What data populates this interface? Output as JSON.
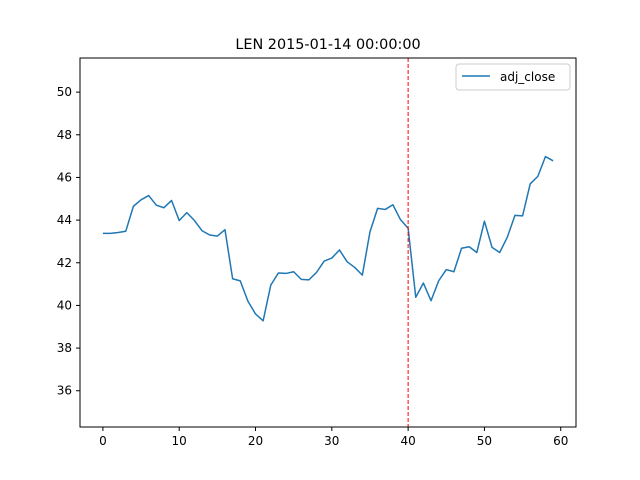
{
  "chart_data": {
    "type": "line",
    "title": "LEN 2015-01-14 00:00:00",
    "xlabel": "",
    "ylabel": "",
    "xlim": [
      -3,
      62
    ],
    "ylim": [
      34.3,
      51.6
    ],
    "xticks": [
      0,
      10,
      20,
      30,
      40,
      50,
      60
    ],
    "yticks": [
      36,
      38,
      40,
      42,
      44,
      46,
      48,
      50
    ],
    "grid": false,
    "legend_position": "top-right",
    "series": [
      {
        "name": "adj_close",
        "color": "#1f77b4",
        "x": [
          0,
          1,
          2,
          3,
          4,
          5,
          6,
          7,
          8,
          9,
          10,
          11,
          12,
          13,
          14,
          15,
          16,
          17,
          18,
          19,
          20,
          21,
          22,
          23,
          24,
          25,
          26,
          27,
          28,
          29,
          30,
          31,
          32,
          33,
          34,
          35,
          36,
          37,
          38,
          39,
          40,
          41,
          42,
          43,
          44,
          45,
          46,
          47,
          48,
          49,
          50,
          51,
          52,
          53,
          54,
          55,
          56,
          57,
          58,
          59
        ],
        "values": [
          43.38,
          43.38,
          43.42,
          43.48,
          44.65,
          44.95,
          45.15,
          44.7,
          44.58,
          44.92,
          43.98,
          44.35,
          43.98,
          43.5,
          43.3,
          43.25,
          43.55,
          41.25,
          41.15,
          40.2,
          39.6,
          39.28,
          40.95,
          41.52,
          41.5,
          41.58,
          41.22,
          41.2,
          41.55,
          42.08,
          42.22,
          42.6,
          42.05,
          41.78,
          41.42,
          43.45,
          44.55,
          44.5,
          44.72,
          44.02,
          43.62,
          40.38,
          41.05,
          40.22,
          41.15,
          41.68,
          41.58,
          42.68,
          42.75,
          42.48,
          43.95,
          42.72,
          42.48,
          43.2,
          44.22,
          44.2,
          45.7,
          46.05,
          46.98,
          46.78
        ]
      }
    ],
    "vline": {
      "x": 40,
      "color": "#ff0000",
      "style": "dashed"
    }
  }
}
